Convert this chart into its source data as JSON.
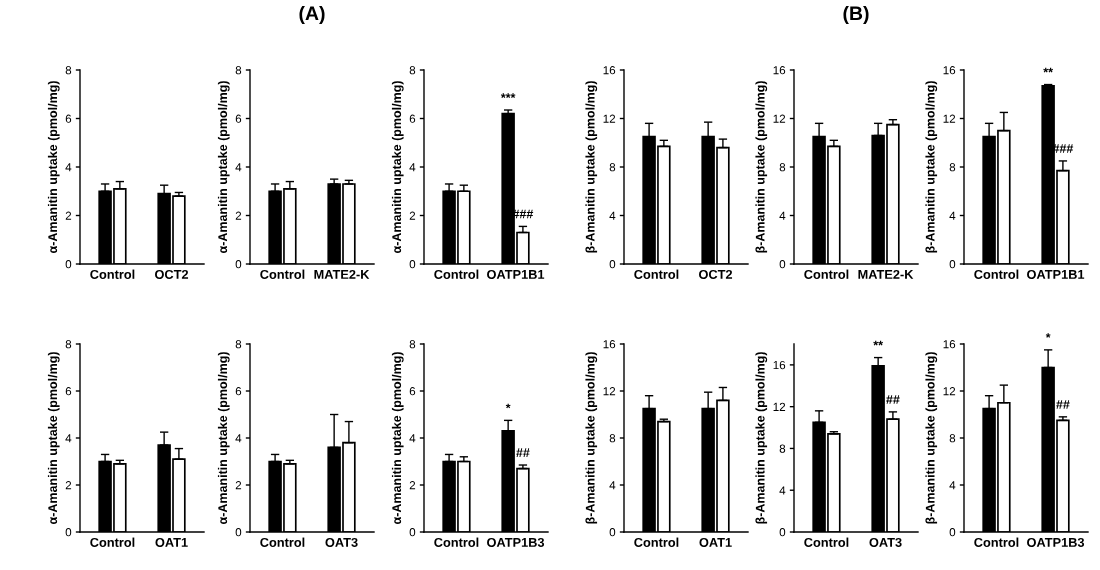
{
  "chart_data": [
    {
      "type": "bar",
      "categories": [
        "Control",
        "OCT2"
      ],
      "ylabel": "α-Amanitin uptake (pmol/mg)",
      "ylim": [
        0,
        8
      ],
      "yticks": [
        0,
        2,
        4,
        6,
        8
      ],
      "grid": false,
      "legend": false,
      "series": [
        {
          "color": "#000000",
          "values": [
            3.0,
            2.9
          ],
          "errors": [
            0.3,
            0.35
          ]
        },
        {
          "color": "#ffffff",
          "values": [
            3.1,
            2.8
          ],
          "errors": [
            0.3,
            0.15
          ]
        }
      ]
    },
    {
      "type": "bar",
      "title": "(A)",
      "categories": [
        "Control",
        "MATE2-K"
      ],
      "ylabel": "α-Amanitin uptake (pmol/mg)",
      "ylim": [
        0,
        8
      ],
      "yticks": [
        0,
        2,
        4,
        6,
        8
      ],
      "grid": false,
      "legend": false,
      "series": [
        {
          "color": "#000000",
          "values": [
            3.0,
            3.3
          ],
          "errors": [
            0.3,
            0.2
          ]
        },
        {
          "color": "#ffffff",
          "values": [
            3.1,
            3.3
          ],
          "errors": [
            0.3,
            0.15
          ]
        }
      ]
    },
    {
      "type": "bar",
      "categories": [
        "Control",
        "OATP1B1"
      ],
      "ylabel": "α-Amanitin uptake (pmol/mg)",
      "ylim": [
        0,
        8
      ],
      "yticks": [
        0,
        2,
        4,
        6,
        8
      ],
      "grid": false,
      "legend": false,
      "series": [
        {
          "color": "#000000",
          "values": [
            3.0,
            6.2
          ],
          "errors": [
            0.3,
            0.15
          ]
        },
        {
          "color": "#ffffff",
          "values": [
            3.0,
            1.3
          ],
          "errors": [
            0.25,
            0.25
          ]
        }
      ],
      "annotations": [
        {
          "text": "***",
          "x": "OATP1B1",
          "y": 6.2
        },
        {
          "text": "###",
          "x": "OATP1B1",
          "y": 1.3
        }
      ]
    },
    {
      "type": "bar",
      "categories": [
        "Control",
        "OCT2"
      ],
      "ylabel": "β-Amanitin uptake (pmol/mg)",
      "ylim": [
        0,
        16
      ],
      "yticks": [
        0,
        4,
        8,
        12,
        16
      ],
      "grid": false,
      "legend": false,
      "series": [
        {
          "color": "#000000",
          "values": [
            10.5,
            10.5
          ],
          "errors": [
            1.1,
            1.2
          ]
        },
        {
          "color": "#ffffff",
          "values": [
            9.7,
            9.6
          ],
          "errors": [
            0.5,
            0.7
          ]
        }
      ]
    },
    {
      "type": "bar",
      "title": "(B)",
      "categories": [
        "Control",
        "MATE2-K"
      ],
      "ylabel": "β-Amanitin uptake (pmol/mg)",
      "ylim": [
        0,
        16
      ],
      "yticks": [
        0,
        4,
        8,
        12,
        16
      ],
      "grid": false,
      "legend": false,
      "series": [
        {
          "color": "#000000",
          "values": [
            10.5,
            10.6
          ],
          "errors": [
            1.1,
            1.0
          ]
        },
        {
          "color": "#ffffff",
          "values": [
            9.7,
            11.5
          ],
          "errors": [
            0.5,
            0.4
          ]
        }
      ]
    },
    {
      "type": "bar",
      "categories": [
        "Control",
        "OATP1B1"
      ],
      "ylabel": "β-Amanitin uptake (pmol/mg)",
      "ylim": [
        0,
        16
      ],
      "yticks": [
        0,
        4,
        8,
        12,
        16
      ],
      "grid": false,
      "legend": false,
      "series": [
        {
          "color": "#000000",
          "values": [
            10.5,
            14.7
          ],
          "errors": [
            1.1,
            0.1
          ]
        },
        {
          "color": "#ffffff",
          "values": [
            11.0,
            7.7
          ],
          "errors": [
            1.5,
            0.8
          ]
        }
      ],
      "annotations": [
        {
          "text": "**",
          "x": "OATP1B1",
          "y": 14.7
        },
        {
          "text": "###",
          "x": "OATP1B1",
          "y": 7.7
        }
      ]
    },
    {
      "type": "bar",
      "categories": [
        "Control",
        "OAT1"
      ],
      "ylabel": "α-Amanitin uptake (pmol/mg)",
      "ylim": [
        0,
        8
      ],
      "yticks": [
        0,
        2,
        4,
        6,
        8
      ],
      "grid": false,
      "legend": false,
      "series": [
        {
          "color": "#000000",
          "values": [
            3.0,
            3.7
          ],
          "errors": [
            0.3,
            0.55
          ]
        },
        {
          "color": "#ffffff",
          "values": [
            2.9,
            3.1
          ],
          "errors": [
            0.15,
            0.45
          ]
        }
      ]
    },
    {
      "type": "bar",
      "categories": [
        "Control",
        "OAT3"
      ],
      "ylabel": "α-Amanitin uptake (pmol/mg)",
      "ylim": [
        0,
        8
      ],
      "yticks": [
        0,
        2,
        4,
        6,
        8
      ],
      "grid": false,
      "legend": false,
      "series": [
        {
          "color": "#000000",
          "values": [
            3.0,
            3.6
          ],
          "errors": [
            0.3,
            1.4
          ]
        },
        {
          "color": "#ffffff",
          "values": [
            2.9,
            3.8
          ],
          "errors": [
            0.15,
            0.9
          ]
        }
      ]
    },
    {
      "type": "bar",
      "categories": [
        "Control",
        "OATP1B3"
      ],
      "ylabel": "α-Amanitin uptake (pmol/mg)",
      "ylim": [
        0,
        8
      ],
      "yticks": [
        0,
        2,
        4,
        6,
        8
      ],
      "grid": false,
      "legend": false,
      "series": [
        {
          "color": "#000000",
          "values": [
            3.0,
            4.3
          ],
          "errors": [
            0.3,
            0.45
          ]
        },
        {
          "color": "#ffffff",
          "values": [
            3.0,
            2.7
          ],
          "errors": [
            0.2,
            0.15
          ]
        }
      ],
      "annotations": [
        {
          "text": "*",
          "x": "OATP1B3",
          "y": 4.3
        },
        {
          "text": "##",
          "x": "OATP1B3",
          "y": 2.7
        }
      ]
    },
    {
      "type": "bar",
      "categories": [
        "Control",
        "OAT1"
      ],
      "ylabel": "β-Amanitin uptake (pmol/mg)",
      "ylim": [
        0,
        16
      ],
      "yticks": [
        0,
        4,
        8,
        12,
        16
      ],
      "grid": false,
      "legend": false,
      "series": [
        {
          "color": "#000000",
          "values": [
            10.5,
            10.5
          ],
          "errors": [
            1.1,
            1.4
          ]
        },
        {
          "color": "#ffffff",
          "values": [
            9.4,
            11.2
          ],
          "errors": [
            0.2,
            1.1
          ]
        }
      ]
    },
    {
      "type": "bar",
      "categories": [
        "Control",
        "OAT3"
      ],
      "ylabel": "β-Amanitin uptake (pmol/mg)",
      "ylim": [
        0,
        18
      ],
      "yticks": [
        0,
        4,
        8,
        12,
        16
      ],
      "grid": false,
      "legend": false,
      "series": [
        {
          "color": "#000000",
          "values": [
            10.5,
            15.9
          ],
          "errors": [
            1.1,
            0.8
          ]
        },
        {
          "color": "#ffffff",
          "values": [
            9.4,
            10.8
          ],
          "errors": [
            0.2,
            0.7
          ]
        }
      ],
      "annotations": [
        {
          "text": "**",
          "x": "OAT3",
          "y": 15.9
        },
        {
          "text": "##",
          "x": "OAT3",
          "y": 10.8
        }
      ]
    },
    {
      "type": "bar",
      "categories": [
        "Control",
        "OATP1B3"
      ],
      "ylabel": "β-Amanitin uptake (pmol/mg)",
      "ylim": [
        0,
        16
      ],
      "yticks": [
        0,
        4,
        8,
        12,
        16
      ],
      "grid": false,
      "legend": false,
      "series": [
        {
          "color": "#000000",
          "values": [
            10.5,
            14.0
          ],
          "errors": [
            1.1,
            1.5
          ]
        },
        {
          "color": "#ffffff",
          "values": [
            11.0,
            9.5
          ],
          "errors": [
            1.5,
            0.3
          ]
        }
      ],
      "annotations": [
        {
          "text": "*",
          "x": "OATP1B3",
          "y": 14.0
        },
        {
          "text": "##",
          "x": "OATP1B3",
          "y": 9.5
        }
      ]
    }
  ]
}
